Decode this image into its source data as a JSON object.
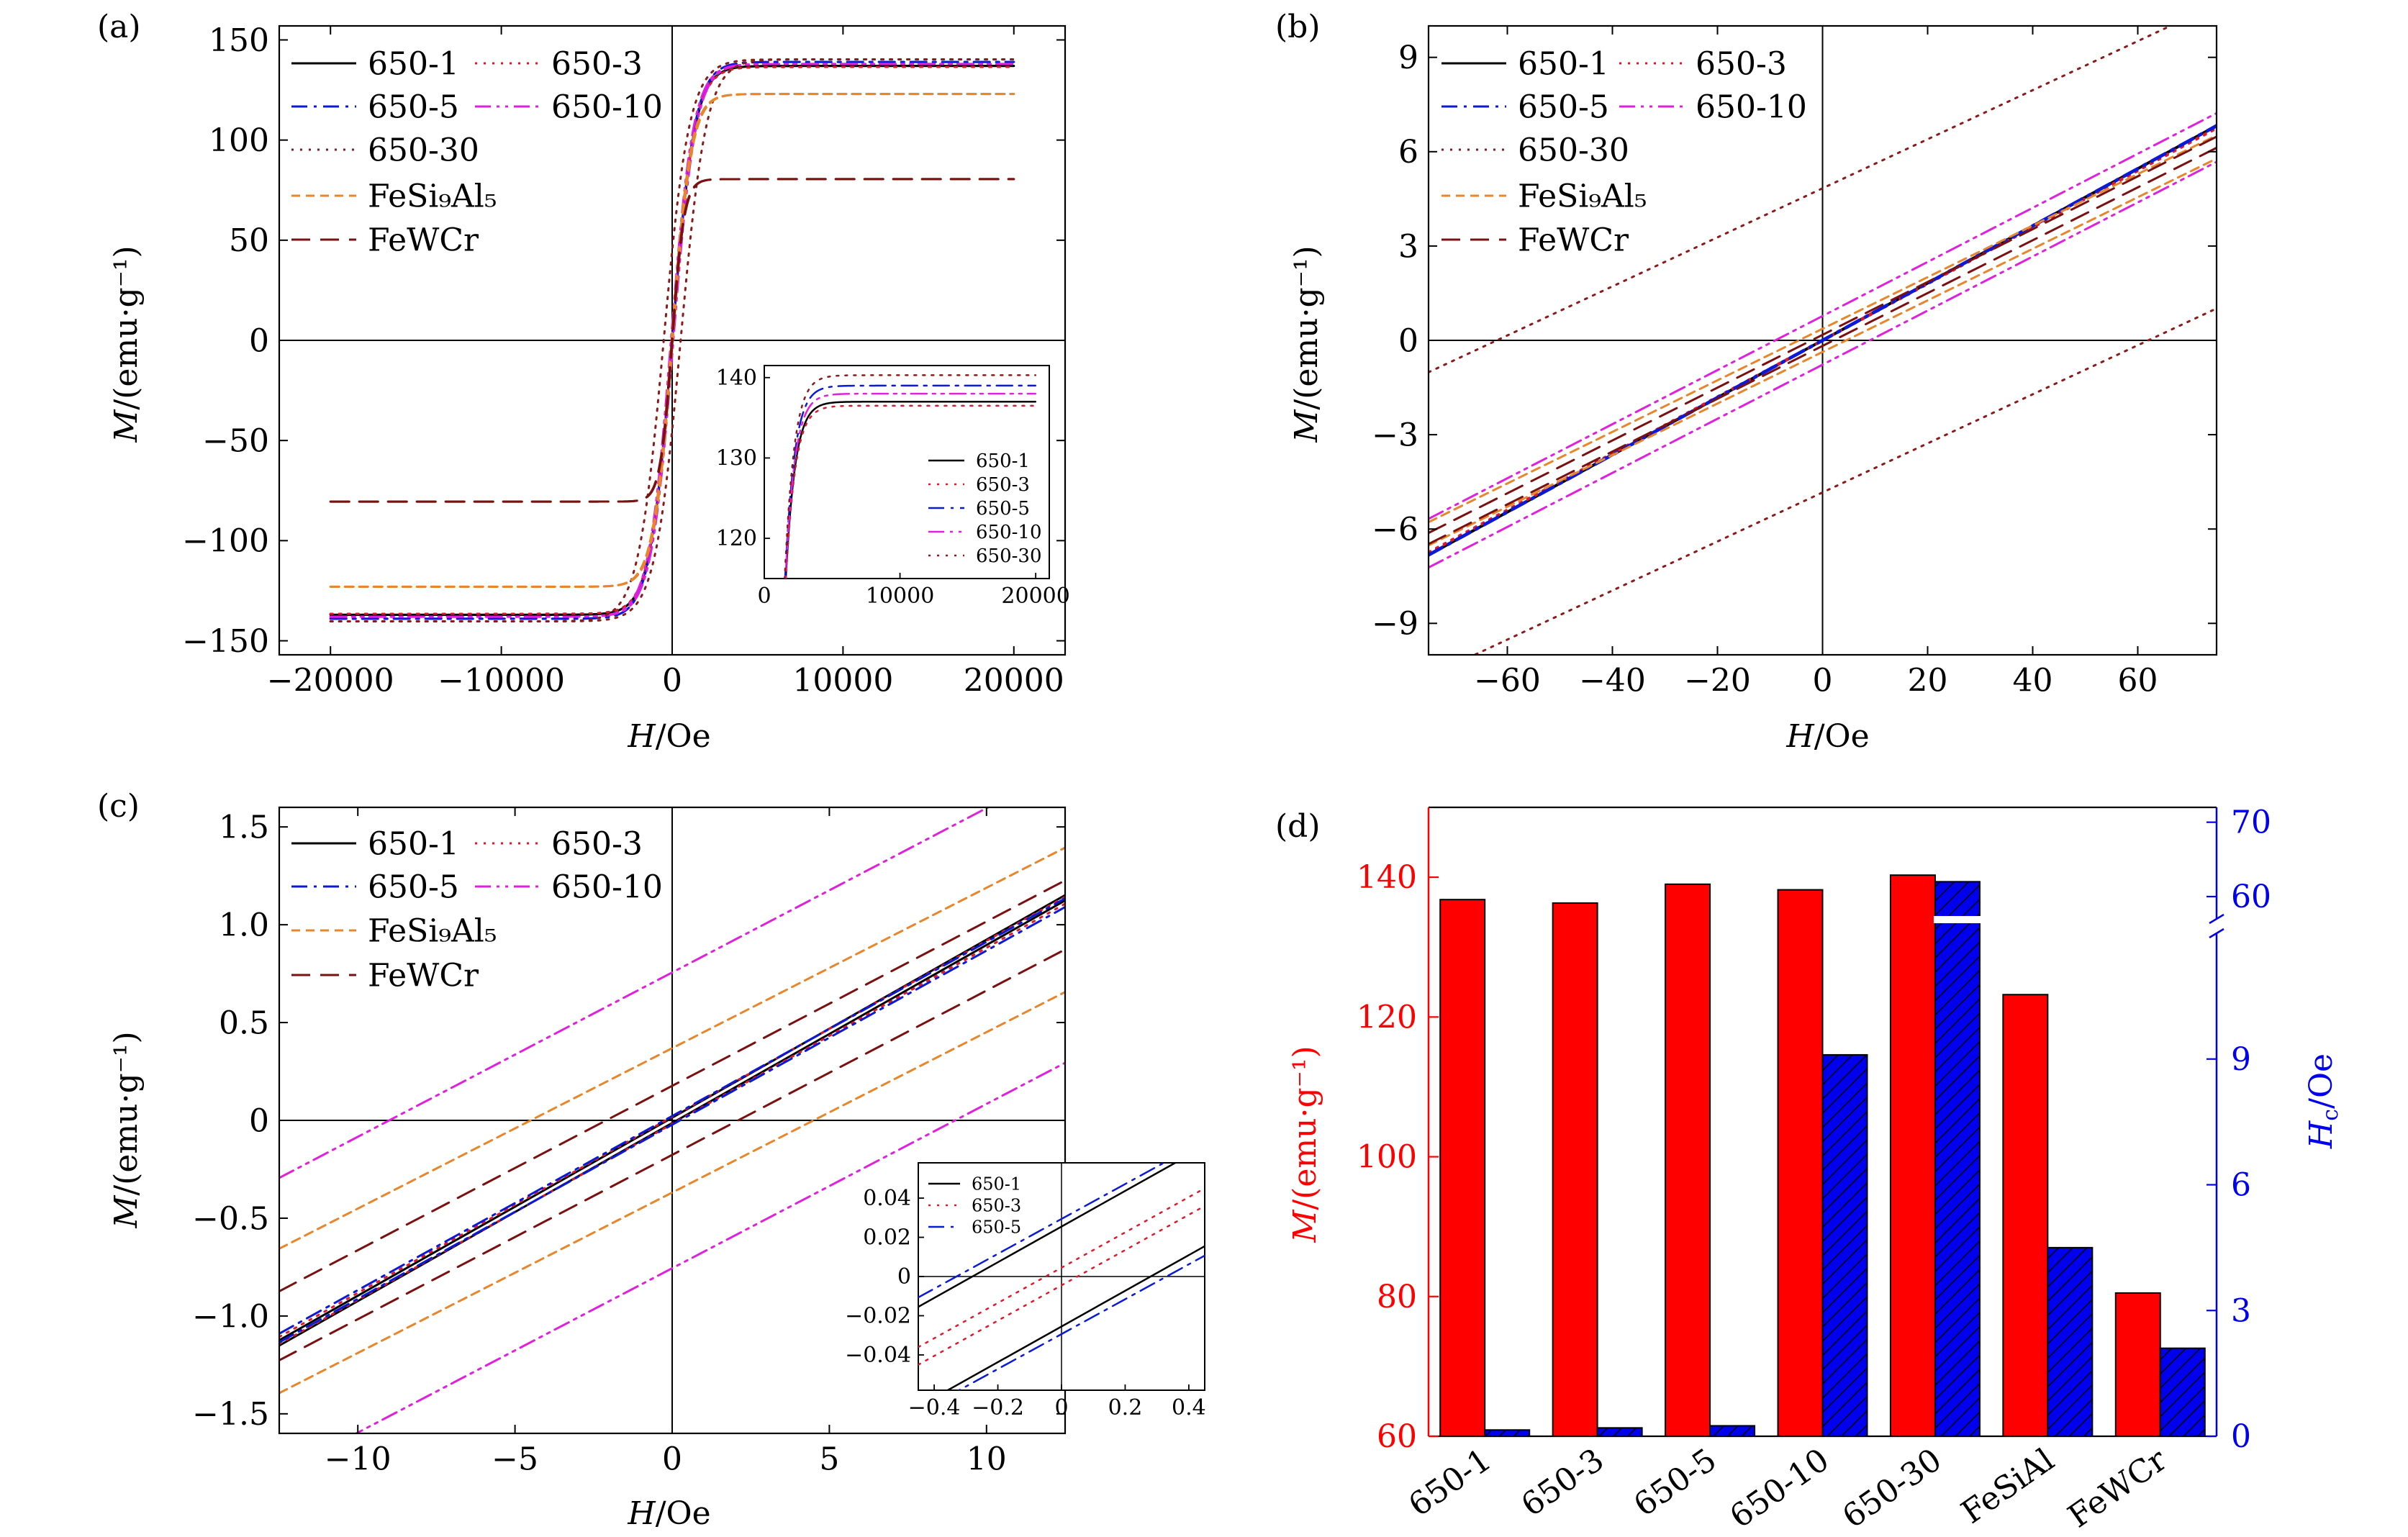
{
  "figure": {
    "panels": {
      "a": {
        "label": "(a)",
        "xlabel_italic": "H",
        "xlabel_rest": "/Oe",
        "ylabel_italic": "M",
        "ylabel_rest": "/(emu·g⁻¹)",
        "inset_legend": [
          "650-1",
          "650-3",
          "650-5",
          "650-10",
          "650-30"
        ]
      },
      "b": {
        "label": "(b)",
        "xlabel_italic": "H",
        "xlabel_rest": "/Oe",
        "ylabel_italic": "M",
        "ylabel_rest": "/(emu·g⁻¹)"
      },
      "c": {
        "label": "(c)",
        "xlabel_italic": "H",
        "xlabel_rest": "/Oe",
        "ylabel_italic": "M",
        "ylabel_rest": "/(emu·g⁻¹)",
        "inset_legend": [
          "650-1",
          "650-3",
          "650-5"
        ]
      },
      "d": {
        "label": "(d)",
        "ylabel_italic": "M",
        "ylabel_rest": "/(emu·g⁻¹)",
        "y2label_italic": "H",
        "y2label_sub": "c",
        "y2label_rest": "/Oe"
      }
    }
  },
  "chart_data": [
    {
      "panel": "a",
      "type": "line",
      "xlim": [
        -23000,
        23000
      ],
      "ylim": [
        -157,
        157
      ],
      "xticks": [
        -20000,
        -10000,
        0,
        10000,
        20000
      ],
      "xtick_labels": [
        "−20000",
        "−10000",
        "0",
        "10000",
        "20000"
      ],
      "yticks": [
        -150,
        -100,
        -50,
        0,
        50,
        100,
        150
      ],
      "ytick_labels": [
        "−150",
        "−100",
        "−50",
        "0",
        "50",
        "100",
        "150"
      ],
      "legend_position": "top-left",
      "series": [
        {
          "name": "650-1",
          "color": "#000000",
          "dash": "solid",
          "Ms": 137.0,
          "Hc": 0.15
        },
        {
          "name": "650-3",
          "color": "#e0182b",
          "dash": "dotted",
          "Ms": 136.5,
          "Hc": 0.2
        },
        {
          "name": "650-5",
          "color": "#0b1ad8",
          "dash": "dashdot",
          "Ms": 139.0,
          "Hc": 0.25
        },
        {
          "name": "650-10",
          "color": "#e020dc",
          "dash": "dashdotdot",
          "Ms": 138.0,
          "Hc": 9.0
        },
        {
          "name": "650-30",
          "color": "#8b1a1a",
          "dash": "dotted",
          "Ms": 140.3,
          "Hc": 62.0
        },
        {
          "name": "FeSi₉Al₅",
          "color": "#e8862b",
          "dash": "dashed-short",
          "Ms": 123.0,
          "Hc": 4.5
        },
        {
          "name": "FeWCr",
          "color": "#7a1010",
          "dash": "dashed-long",
          "Ms": 80.5,
          "Hc": 2.1
        }
      ],
      "inset": {
        "xlim": [
          0,
          21000
        ],
        "ylim": [
          115,
          141.5
        ],
        "xticks": [
          0,
          10000,
          20000
        ],
        "xtick_labels": [
          "0",
          "10000",
          "20000"
        ],
        "yticks": [
          120,
          130,
          140
        ],
        "ytick_labels": [
          "120",
          "130",
          "140"
        ],
        "series": [
          "650-1",
          "650-3",
          "650-5",
          "650-10",
          "650-30"
        ]
      }
    },
    {
      "panel": "b",
      "type": "line",
      "xlim": [
        -75,
        75
      ],
      "ylim": [
        -10,
        10
      ],
      "xticks": [
        -60,
        -40,
        -20,
        0,
        20,
        40,
        60
      ],
      "xtick_labels": [
        "−60",
        "−40",
        "−20",
        "0",
        "20",
        "40",
        "60"
      ],
      "yticks": [
        -9,
        -6,
        -3,
        0,
        3,
        6,
        9
      ],
      "ytick_labels": [
        "−9",
        "−6",
        "−3",
        "0",
        "3",
        "6",
        "9"
      ],
      "legend_position": "top-left",
      "series": [
        "650-1",
        "650-3",
        "650-5",
        "650-10",
        "650-30",
        "FeSi₉Al₅",
        "FeWCr"
      ]
    },
    {
      "panel": "c",
      "type": "line",
      "xlim": [
        -12.5,
        12.5
      ],
      "ylim": [
        -1.6,
        1.6
      ],
      "xticks": [
        -10,
        -5,
        0,
        5,
        10
      ],
      "xtick_labels": [
        "−10",
        "−5",
        "0",
        "5",
        "10"
      ],
      "yticks": [
        -1.5,
        -1.0,
        -0.5,
        0,
        0.5,
        1.0,
        1.5
      ],
      "ytick_labels": [
        "−1.5",
        "−1.0",
        "−0.5",
        "0",
        "0.5",
        "1.0",
        "1.5"
      ],
      "legend_position": "top-left",
      "series": [
        "650-1",
        "650-3",
        "650-5",
        "650-10",
        "FeSi₉Al₅",
        "FeWCr"
      ],
      "inset": {
        "xlim": [
          -0.45,
          0.45
        ],
        "ylim": [
          -0.058,
          0.058
        ],
        "xticks": [
          -0.4,
          -0.2,
          0,
          0.2,
          0.4
        ],
        "xtick_labels": [
          "−0.4",
          "−0.2",
          "0",
          "0.2",
          "0.4"
        ],
        "yticks": [
          -0.04,
          -0.02,
          0,
          0.02,
          0.04
        ],
        "ytick_labels": [
          "−0.04",
          "−0.02",
          "0",
          "0.02",
          "0.04"
        ],
        "series": [
          "650-1",
          "650-3",
          "650-5"
        ]
      }
    },
    {
      "panel": "d",
      "type": "bar",
      "categories": [
        "650-1",
        "650-3",
        "650-5",
        "650-10",
        "650-30",
        "FeSiAl",
        "FeWCr"
      ],
      "series": [
        {
          "name": "M",
          "axis": "left",
          "color": "#ff0000",
          "values": [
            136.8,
            136.3,
            139.0,
            138.2,
            140.3,
            123.2,
            80.5
          ]
        },
        {
          "name": "Hc",
          "axis": "right",
          "color": "#0000ee",
          "hatch": true,
          "values": [
            0.15,
            0.2,
            0.25,
            9.1,
            62.0,
            4.5,
            2.1
          ]
        }
      ],
      "ylim": [
        60,
        150
      ],
      "yticks": [
        60,
        80,
        100,
        120,
        140
      ],
      "ytick_labels": [
        "60",
        "80",
        "100",
        "120",
        "140"
      ],
      "y2_broken_axis": true,
      "y2_lower_range": [
        0,
        12
      ],
      "y2_upper_range": [
        57,
        72
      ],
      "y2_ticks": [
        0,
        3,
        6,
        9,
        60,
        70
      ],
      "y2_tick_labels": [
        "0",
        "3",
        "6",
        "9",
        "60",
        "70"
      ],
      "left_axis_color": "#ff0000",
      "right_axis_color": "#0000ee"
    }
  ]
}
